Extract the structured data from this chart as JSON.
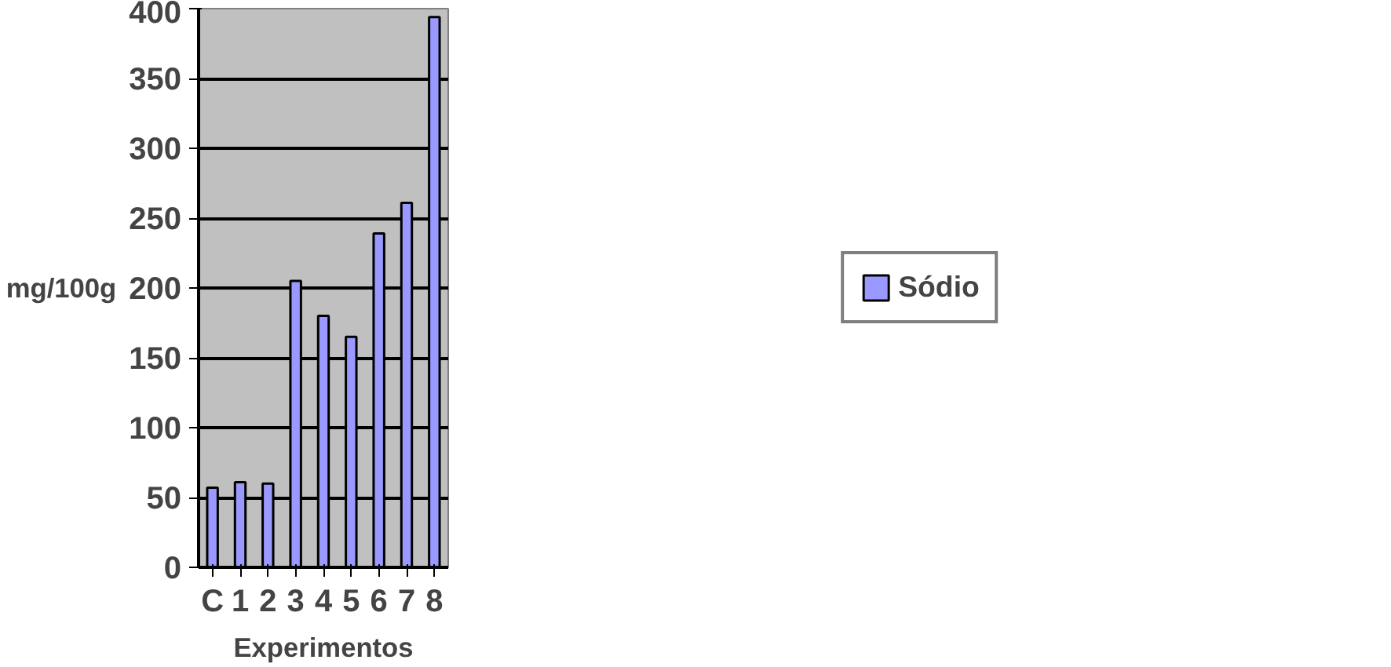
{
  "chart_data": {
    "type": "bar",
    "xlabel": "Experimentos",
    "ylabel": "mg/100g",
    "categories": [
      "C",
      "1",
      "2",
      "3",
      "4",
      "5",
      "6",
      "7",
      "8"
    ],
    "series": [
      {
        "name": "Sódio",
        "color": "#9999ff",
        "values": [
          57,
          61,
          60,
          205,
          180,
          165,
          239,
          261,
          394
        ]
      }
    ],
    "ylim": [
      0,
      400
    ],
    "yticks": [
      0,
      50,
      100,
      150,
      200,
      250,
      300,
      350,
      400
    ],
    "grid": "y",
    "legend": "right"
  }
}
